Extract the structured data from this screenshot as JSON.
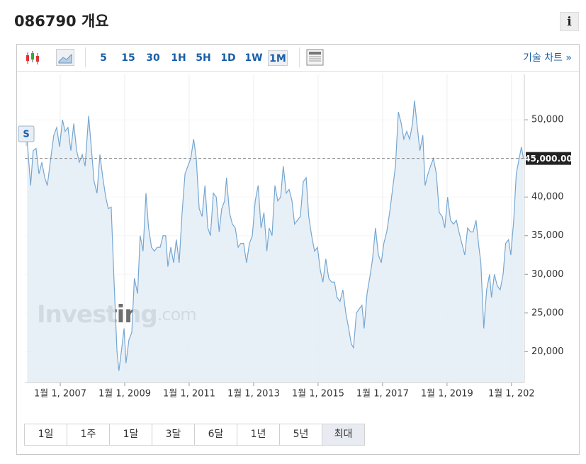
{
  "header": {
    "title": "086790 개요",
    "info": "i"
  },
  "toolbar": {
    "intervals": [
      "5",
      "15",
      "30",
      "1H",
      "5H",
      "1D",
      "1W",
      "1M"
    ],
    "active_interval": "1M",
    "technical_link": "기술 차트 »"
  },
  "ranges": {
    "items": [
      "1일",
      "1주",
      "1달",
      "3달",
      "6달",
      "1년",
      "5년",
      "최대"
    ],
    "active": "최대"
  },
  "chart_data": {
    "type": "area",
    "color": "#76a7d1",
    "fill": "#e4edf6",
    "watermark": {
      "brand": "Investing",
      "suffix": ".com"
    },
    "marker": "S",
    "current_price": {
      "value": 45000,
      "label": "45,000.00"
    },
    "xlim": [
      2005.9,
      2021.4
    ],
    "xticks": [
      {
        "value": 2007,
        "label": "1월 1, 2007"
      },
      {
        "value": 2009,
        "label": "1월 1, 2009"
      },
      {
        "value": 2011,
        "label": "1월 1, 2011"
      },
      {
        "value": 2013,
        "label": "1월 1, 2013"
      },
      {
        "value": 2015,
        "label": "1월 1, 2015"
      },
      {
        "value": 2017,
        "label": "1월 1, 2017"
      },
      {
        "value": 2019,
        "label": "1월 1, 2019"
      },
      {
        "value": 2021,
        "label": "1월 1, 202"
      }
    ],
    "ylim": [
      16000,
      54500
    ],
    "yticks": [
      {
        "value": 20000,
        "label": "20,000"
      },
      {
        "value": 25000,
        "label": "25,000"
      },
      {
        "value": 30000,
        "label": "30,000"
      },
      {
        "value": 35000,
        "label": "35,000"
      },
      {
        "value": 40000,
        "label": "40,000"
      },
      {
        "value": 45000,
        "label": "45,000"
      },
      {
        "value": 50000,
        "label": "50,000"
      }
    ],
    "grid": true,
    "x": [
      2005.97,
      2006.08,
      2006.16,
      2006.25,
      2006.34,
      2006.43,
      2006.52,
      2006.6,
      2006.69,
      2006.8,
      2006.89,
      2006.98,
      2007.07,
      2007.15,
      2007.24,
      2007.33,
      2007.42,
      2007.51,
      2007.59,
      2007.68,
      2007.77,
      2007.88,
      2007.97,
      2008.05,
      2008.14,
      2008.23,
      2008.32,
      2008.41,
      2008.49,
      2008.58,
      2008.67,
      2008.76,
      2008.82,
      2008.91,
      2008.98,
      2009.04,
      2009.13,
      2009.22,
      2009.3,
      2009.4,
      2009.48,
      2009.57,
      2009.66,
      2009.74,
      2009.83,
      2009.92,
      2010.01,
      2010.1,
      2010.19,
      2010.27,
      2010.34,
      2010.43,
      2010.52,
      2010.6,
      2010.69,
      2010.78,
      2010.87,
      2010.96,
      2011.05,
      2011.14,
      2011.22,
      2011.31,
      2011.4,
      2011.49,
      2011.58,
      2011.66,
      2011.75,
      2011.84,
      2011.93,
      2012.01,
      2012.1,
      2012.16,
      2012.25,
      2012.34,
      2012.43,
      2012.52,
      2012.6,
      2012.69,
      2012.78,
      2012.87,
      2012.96,
      2013.05,
      2013.14,
      2013.23,
      2013.32,
      2013.41,
      2013.48,
      2013.57,
      2013.66,
      2013.75,
      2013.84,
      2013.92,
      2014.01,
      2014.1,
      2014.19,
      2014.27,
      2014.36,
      2014.45,
      2014.54,
      2014.63,
      2014.71,
      2014.8,
      2014.89,
      2014.98,
      2015.07,
      2015.15,
      2015.24,
      2015.33,
      2015.42,
      2015.51,
      2015.59,
      2015.68,
      2015.77,
      2015.86,
      2015.95,
      2016.03,
      2016.1,
      2016.19,
      2016.27,
      2016.36,
      2016.43,
      2016.52,
      2016.6,
      2016.69,
      2016.78,
      2016.87,
      2016.96,
      2017.04,
      2017.13,
      2017.22,
      2017.31,
      2017.4,
      2017.49,
      2017.58,
      2017.66,
      2017.75,
      2017.84,
      2017.93,
      2017.99,
      2018.08,
      2018.16,
      2018.25,
      2018.32,
      2018.41,
      2018.49,
      2018.58,
      2018.67,
      2018.76,
      2018.85,
      2018.93,
      2019.02,
      2019.11,
      2019.2,
      2019.29,
      2019.37,
      2019.46,
      2019.55,
      2019.64,
      2019.73,
      2019.81,
      2019.9,
      2019.99,
      2020.05,
      2020.14,
      2020.23,
      2020.32,
      2020.38,
      2020.47,
      2020.56,
      2020.65,
      2020.74,
      2020.82,
      2020.91,
      2020.98,
      2021.07,
      2021.15,
      2021.24,
      2021.31,
      2021.37
    ],
    "values": [
      47500,
      41500,
      46000,
      46300,
      43000,
      44500,
      42500,
      41500,
      44500,
      48000,
      49000,
      46500,
      50000,
      48500,
      49000,
      46000,
      49500,
      46000,
      44500,
      45500,
      44000,
      50500,
      46000,
      42000,
      40500,
      45500,
      42500,
      40000,
      38500,
      38700,
      29000,
      20000,
      17500,
      20500,
      23000,
      18500,
      21500,
      22500,
      29500,
      27500,
      35000,
      33000,
      40500,
      36000,
      33500,
      33000,
      33500,
      33500,
      35000,
      35000,
      31000,
      33500,
      31500,
      34500,
      31500,
      38000,
      43000,
      44000,
      45000,
      47500,
      45000,
      38500,
      37500,
      41500,
      36000,
      35000,
      40500,
      40000,
      35500,
      38500,
      39500,
      42500,
      38000,
      36500,
      36000,
      33500,
      34000,
      34000,
      31500,
      34000,
      35000,
      39500,
      41500,
      36000,
      38000,
      33000,
      36000,
      35000,
      41500,
      39500,
      40000,
      44000,
      40500,
      41000,
      39500,
      36500,
      37000,
      37500,
      42000,
      42500,
      37500,
      35000,
      33000,
      33500,
      30500,
      29000,
      32000,
      29500,
      29000,
      29000,
      27000,
      26500,
      28000,
      25000,
      23000,
      21000,
      20500,
      25000,
      25500,
      26000,
      23000,
      27500,
      29500,
      32000,
      36000,
      32500,
      31500,
      34000,
      35500,
      38000,
      41000,
      44000,
      51000,
      49500,
      47500,
      48500,
      47500,
      49500,
      52500,
      49000,
      46000,
      48000,
      41500,
      43000,
      44000,
      45000,
      43000,
      38000,
      37500,
      36000,
      40000,
      37000,
      36500,
      37000,
      35500,
      34000,
      32500,
      36000,
      35500,
      35500,
      37000,
      33500,
      31500,
      23000,
      28000,
      30000,
      27000,
      30000,
      28500,
      28000,
      30000,
      34000,
      34500,
      32500,
      37000,
      43000,
      45000,
      46500,
      45000
    ]
  }
}
